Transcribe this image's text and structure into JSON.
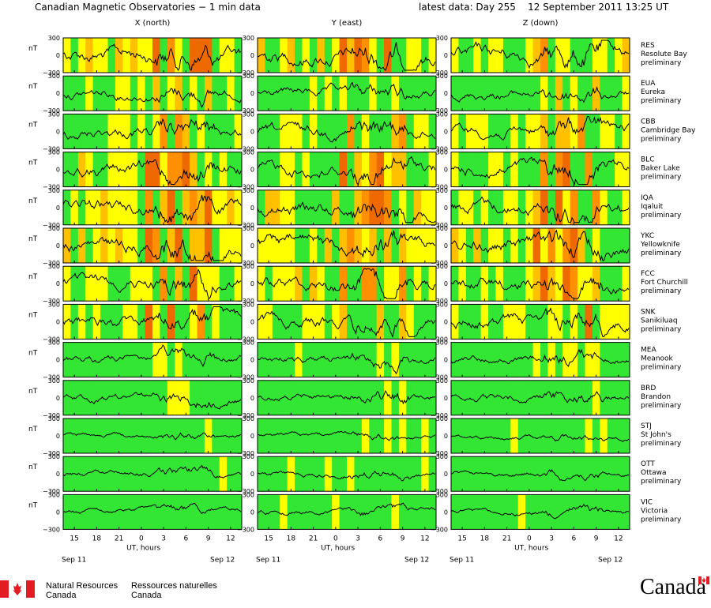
{
  "header": {
    "title": "Canadian Magnetic Observatories − 1 min data",
    "latest": "latest data: Day 255    12 September 2011 13:25 UT"
  },
  "columns": [
    "X (north)",
    "Y (east)",
    "Z (down)"
  ],
  "unit": "nT",
  "y_ticks": [
    "300",
    "0",
    "−300"
  ],
  "x_ticks": [
    "15",
    "18",
    "21",
    "0",
    "3",
    "6",
    "9",
    "12"
  ],
  "x_label": "UT, hours",
  "date_left": "Sep 11",
  "date_right": "Sep 12",
  "status_colors": {
    "quiet": "#33e633",
    "unsettled": "#ffff00",
    "active": "#ffc000",
    "storm": "#ff9000",
    "major": "#ee6a00"
  },
  "chart_data": {
    "type": "line",
    "x_range_hours": [
      13.5,
      37.5
    ],
    "ylim": [
      -300,
      300
    ],
    "stations": [
      {
        "code": "RES",
        "name": "Resolute Bay",
        "status": "preliminary"
      },
      {
        "code": "EUA",
        "name": "Eureka",
        "status": "preliminary"
      },
      {
        "code": "CBB",
        "name": "Cambridge Bay",
        "status": "preliminary"
      },
      {
        "code": "BLC",
        "name": "Baker Lake",
        "status": "preliminary"
      },
      {
        "code": "IQA",
        "name": "Iqaluit",
        "status": "preliminary"
      },
      {
        "code": "YKC",
        "name": "Yellowknife",
        "status": "preliminary"
      },
      {
        "code": "FCC",
        "name": "Fort Churchill",
        "status": "preliminary"
      },
      {
        "code": "SNK",
        "name": "Sanikiluaq",
        "status": "preliminary"
      },
      {
        "code": "MEA",
        "name": "Meanook",
        "status": "preliminary"
      },
      {
        "code": "BRD",
        "name": "Brandon",
        "status": "preliminary"
      },
      {
        "code": "STJ",
        "name": "St John's",
        "status": "preliminary"
      },
      {
        "code": "OTT",
        "name": "Ottawa",
        "status": "preliminary"
      },
      {
        "code": "VIC",
        "name": "Victoria",
        "status": "preliminary"
      }
    ]
  },
  "footer": {
    "nrc_en_1": "Natural Resources",
    "nrc_en_2": "Canada",
    "nrc_fr_1": "Ressources naturelles",
    "nrc_fr_2": "Canada",
    "wordmark": "Canada"
  }
}
